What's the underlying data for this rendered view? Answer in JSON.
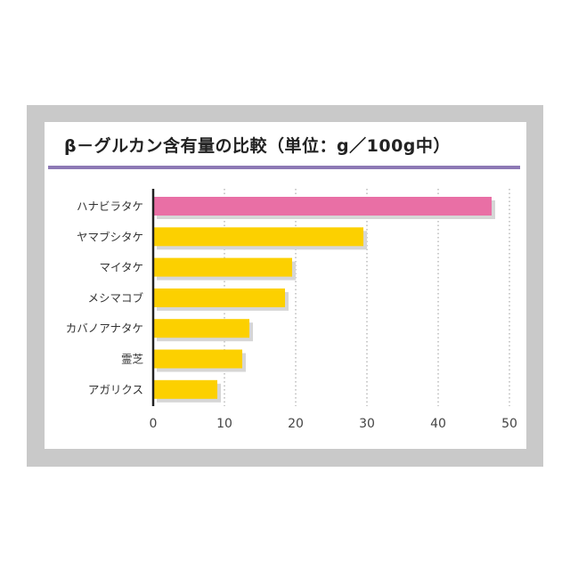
{
  "colors": {
    "highlight": "#e96fa5",
    "bar": "#fcd000",
    "shadow": "#d6d6d6",
    "title_rule": "#8d79b5",
    "frame": "#c9c9c9"
  },
  "chart_data": {
    "type": "bar",
    "orientation": "horizontal",
    "title": "β－グルカン含有量の比較（単位：g／100g中）",
    "categories": [
      "ハナビラタケ",
      "ヤマブシタケ",
      "マイタケ",
      "メシマコブ",
      "カバノアナタケ",
      "霊芝",
      "アガリクス"
    ],
    "values": [
      47.5,
      29.5,
      19.5,
      18.5,
      13.5,
      12.5,
      9
    ],
    "highlight_index": 0,
    "xlim": [
      0,
      50
    ],
    "xticks": [
      0,
      10,
      20,
      30,
      40,
      50
    ],
    "grid": "vertical dotted",
    "xlabel": "",
    "ylabel": ""
  }
}
